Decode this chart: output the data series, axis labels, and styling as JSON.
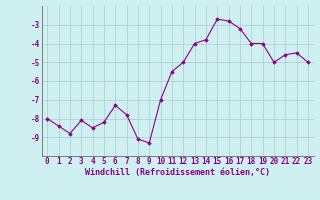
{
  "x": [
    0,
    1,
    2,
    3,
    4,
    5,
    6,
    7,
    8,
    9,
    10,
    11,
    12,
    13,
    14,
    15,
    16,
    17,
    18,
    19,
    20,
    21,
    22,
    23
  ],
  "y": [
    -8.0,
    -8.4,
    -8.8,
    -8.1,
    -8.5,
    -8.2,
    -7.3,
    -7.8,
    -9.1,
    -9.3,
    -7.0,
    -5.5,
    -5.0,
    -4.0,
    -3.8,
    -2.7,
    -2.8,
    -3.2,
    -4.0,
    -4.0,
    -5.0,
    -4.6,
    -4.5,
    -5.0
  ],
  "line_color": "#8B008B",
  "marker": "D",
  "marker_size": 1.8,
  "bg_color": "#cef0f0",
  "grid_color": "#aacccc",
  "xlabel": "Windchill (Refroidissement éolien,°C)",
  "xlabel_color": "#8B008B",
  "xlabel_fontsize": 6.0,
  "tick_fontsize": 5.5,
  "tick_color": "#8B008B",
  "ylim": [
    -10,
    -2
  ],
  "xlim": [
    -0.5,
    23.5
  ],
  "yticks": [
    -9,
    -8,
    -7,
    -6,
    -5,
    -4,
    -3
  ],
  "xticks": [
    0,
    1,
    2,
    3,
    4,
    5,
    6,
    7,
    8,
    9,
    10,
    11,
    12,
    13,
    14,
    15,
    16,
    17,
    18,
    19,
    20,
    21,
    22,
    23
  ],
  "xtick_labels": [
    "0",
    "1",
    "2",
    "3",
    "4",
    "5",
    "6",
    "7",
    "8",
    "9",
    "10",
    "11",
    "12",
    "13",
    "14",
    "15",
    "16",
    "17",
    "18",
    "19",
    "20",
    "21",
    "22",
    "23"
  ]
}
